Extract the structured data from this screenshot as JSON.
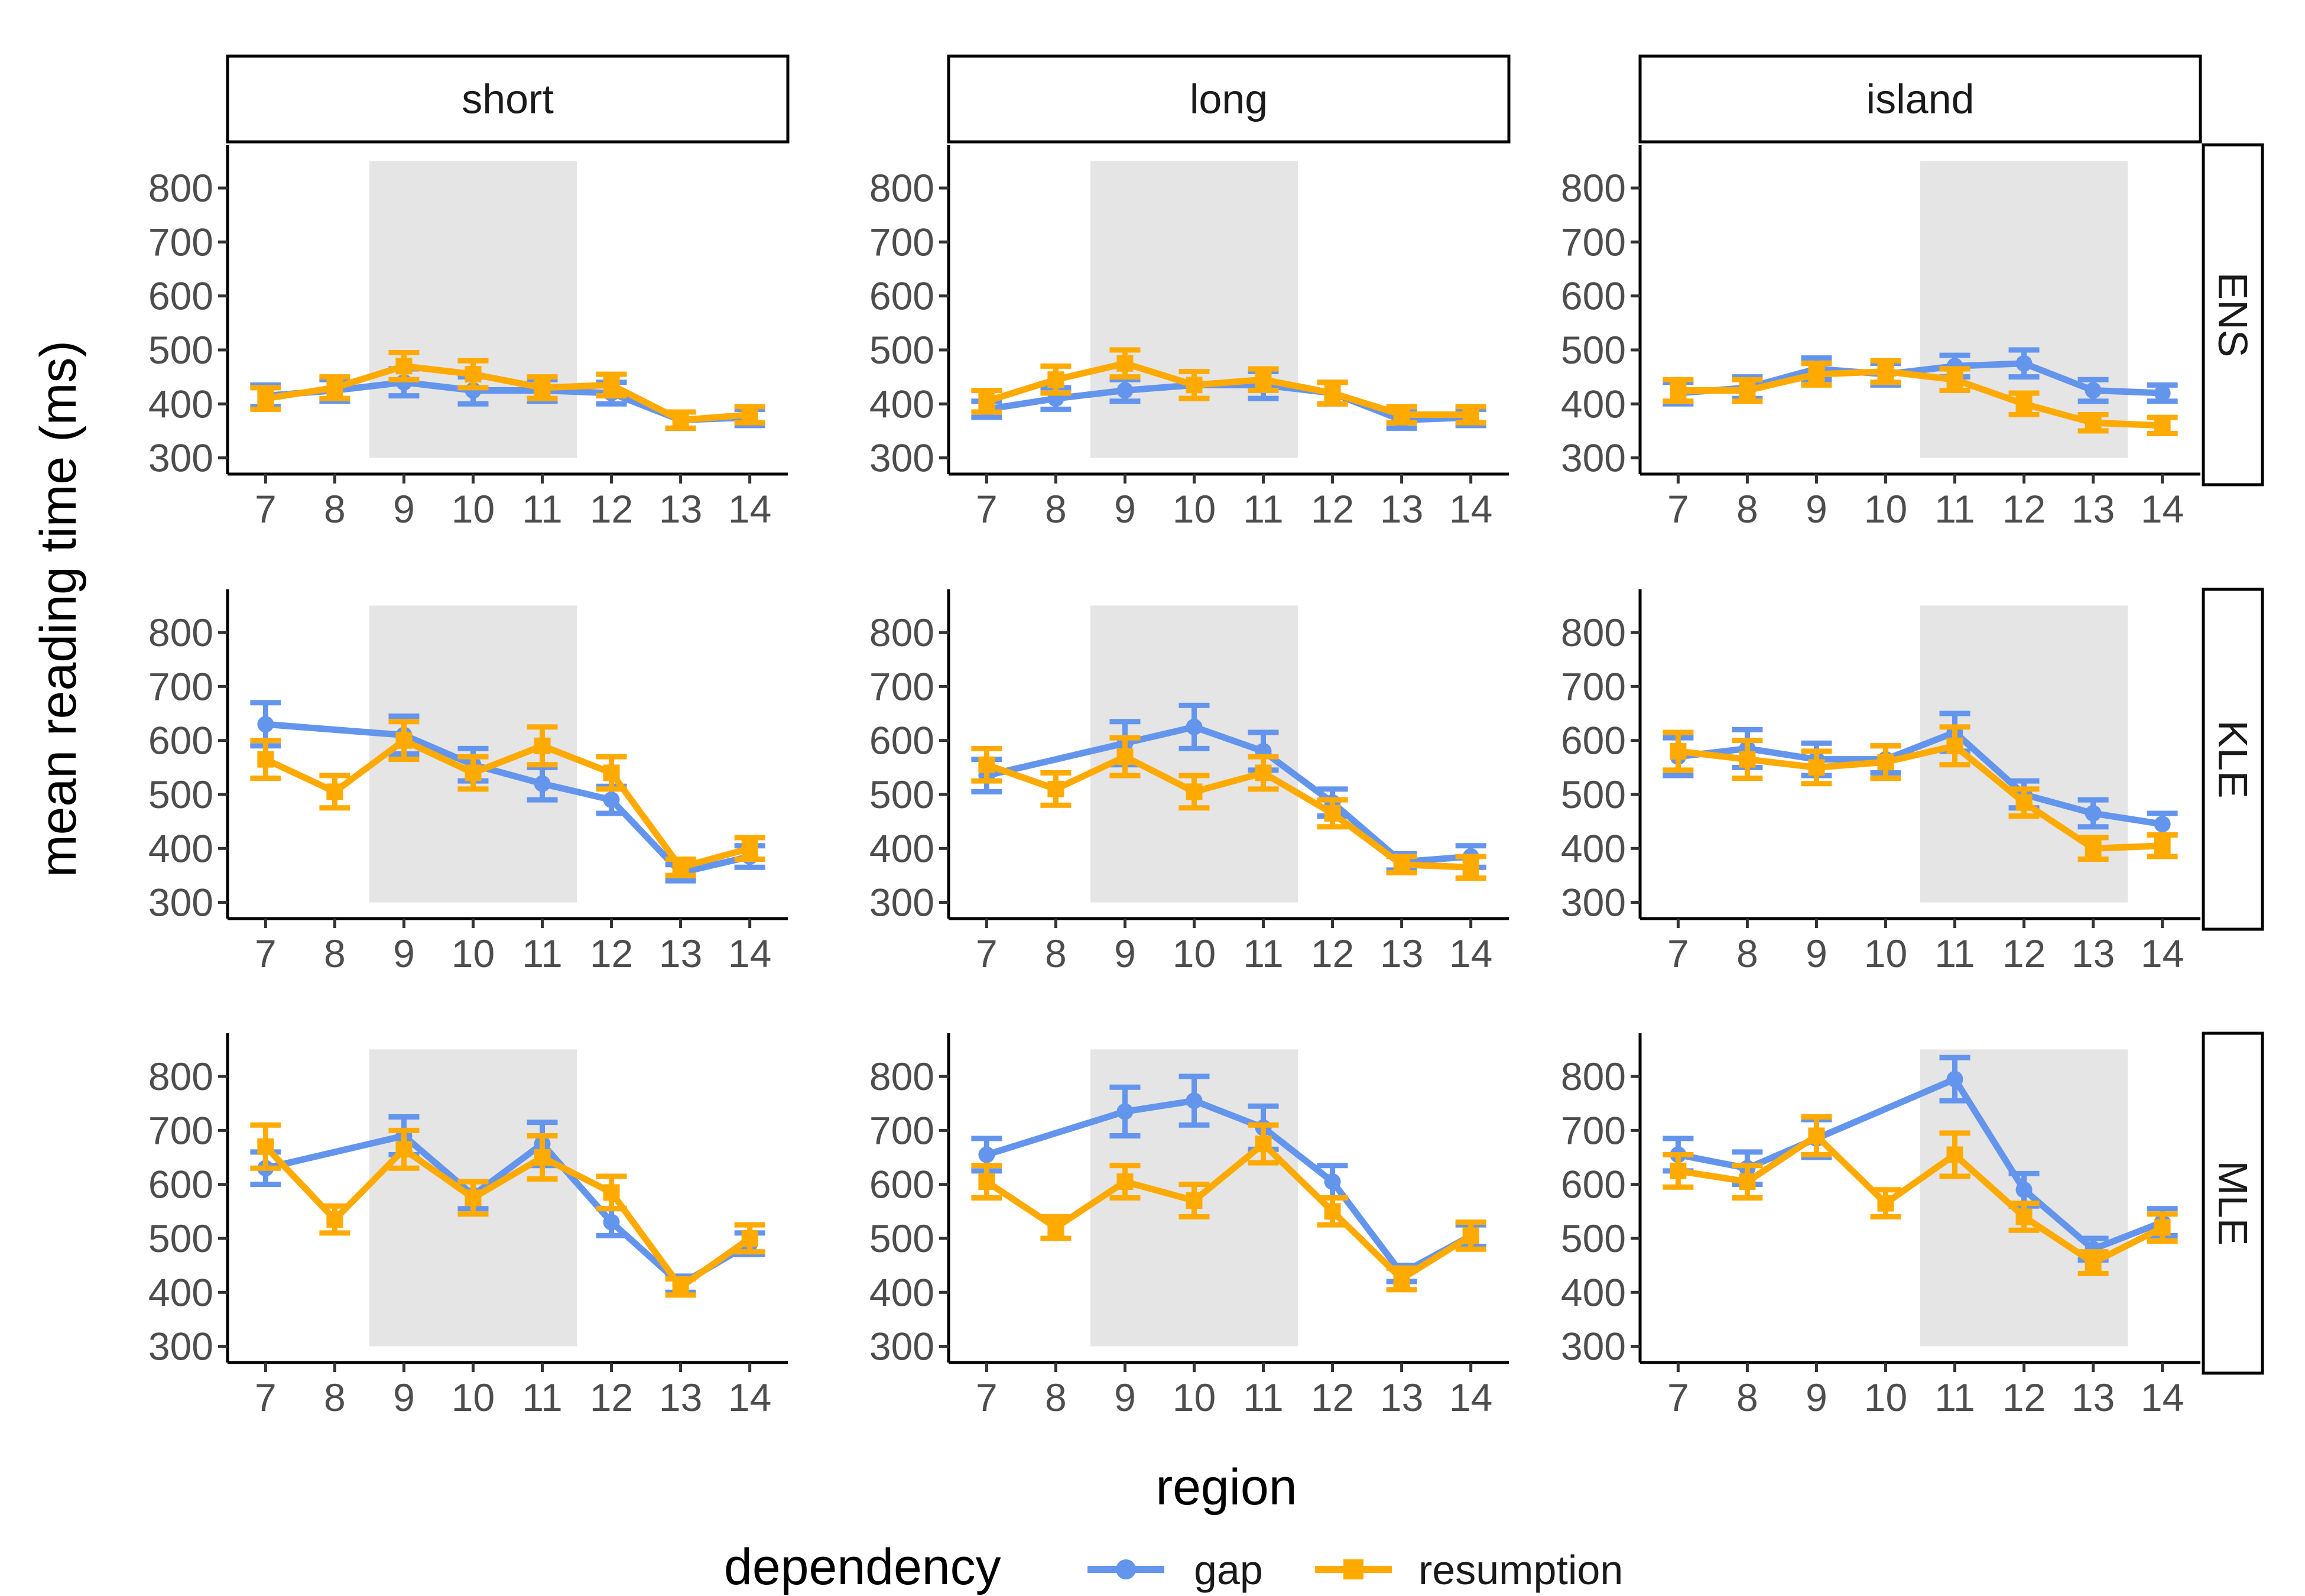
{
  "chart_data": {
    "type": "line",
    "facet_cols": [
      "short",
      "long",
      "island"
    ],
    "facet_rows": [
      "ENS",
      "KLE",
      "MLE"
    ],
    "x": [
      7,
      8,
      9,
      10,
      11,
      12,
      13,
      14
    ],
    "x_tick_labels": [
      "7",
      "8",
      "9",
      "10",
      "11",
      "12",
      "13",
      "14"
    ],
    "y_ticks": [
      300,
      400,
      500,
      600,
      700,
      800
    ],
    "ylim": [
      270,
      880
    ],
    "xlim": [
      6.45,
      14.55
    ],
    "xlabel": "region",
    "ylabel": "mean reading time (ms)",
    "grid": false,
    "legend": {
      "title": "dependency",
      "position": "bottom",
      "items": [
        {
          "name": "gap",
          "color": "#6495ED",
          "marker": "circle"
        },
        {
          "name": "resumption",
          "color": "#FFAA00",
          "marker": "square"
        }
      ]
    },
    "shaded_regions": {
      "short": [
        8.5,
        11.5
      ],
      "long": [
        8.5,
        11.5
      ],
      "island": [
        10.5,
        13.5
      ],
      "ymin": 300,
      "ymax": 850,
      "color": "#e5e5e5"
    },
    "panels": [
      {
        "col": "short",
        "row": "ENS",
        "series": [
          {
            "name": "gap",
            "values": [
              415,
              425,
              440,
              425,
              425,
              420,
              370,
              375
            ],
            "err": [
              20,
              20,
              25,
              25,
              20,
              20,
              15,
              15
            ]
          },
          {
            "name": "resumption",
            "values": [
              410,
              430,
              470,
              455,
              430,
              435,
              370,
              380
            ],
            "err": [
              20,
              20,
              25,
              25,
              20,
              20,
              15,
              15
            ]
          }
        ]
      },
      {
        "col": "long",
        "row": "ENS",
        "series": [
          {
            "name": "gap",
            "values": [
              390,
              410,
              425,
              435,
              435,
              420,
              370,
              375
            ],
            "err": [
              15,
              20,
              20,
              25,
              25,
              20,
              15,
              15
            ]
          },
          {
            "name": "resumption",
            "values": [
              405,
              445,
              475,
              435,
              445,
              420,
              380,
              380
            ],
            "err": [
              20,
              25,
              25,
              25,
              20,
              20,
              15,
              15
            ]
          }
        ]
      },
      {
        "col": "island",
        "row": "ENS",
        "series": [
          {
            "name": "gap",
            "values": [
              420,
              430,
              465,
              455,
              470,
              475,
              425,
              420
            ],
            "err": [
              20,
              20,
              20,
              20,
              20,
              25,
              20,
              15
            ]
          },
          {
            "name": "resumption",
            "values": [
              425,
              425,
              455,
              460,
              445,
              400,
              365,
              360
            ],
            "err": [
              20,
              20,
              20,
              20,
              20,
              20,
              15,
              15
            ]
          }
        ]
      },
      {
        "col": "short",
        "row": "KLE",
        "series": [
          {
            "name": "gap",
            "values": [
              630,
              null,
              610,
              555,
              520,
              490,
              355,
              385
            ],
            "err": [
              40,
              0,
              35,
              30,
              30,
              25,
              15,
              20
            ]
          },
          {
            "name": "resumption",
            "values": [
              565,
              505,
              600,
              540,
              590,
              540,
              365,
              400
            ],
            "err": [
              35,
              30,
              35,
              30,
              35,
              30,
              15,
              20
            ]
          }
        ]
      },
      {
        "col": "long",
        "row": "KLE",
        "series": [
          {
            "name": "gap",
            "values": [
              535,
              null,
              595,
              625,
              580,
              485,
              375,
              385
            ],
            "err": [
              30,
              0,
              40,
              40,
              35,
              25,
              15,
              20
            ]
          },
          {
            "name": "resumption",
            "values": [
              555,
              510,
              570,
              505,
              540,
              465,
              370,
              365
            ],
            "err": [
              30,
              30,
              35,
              30,
              30,
              25,
              15,
              20
            ]
          }
        ]
      },
      {
        "col": "island",
        "row": "KLE",
        "series": [
          {
            "name": "gap",
            "values": [
              570,
              585,
              565,
              565,
              615,
              500,
              465,
              445
            ],
            "err": [
              35,
              35,
              30,
              25,
              35,
              25,
              25,
              20
            ]
          },
          {
            "name": "resumption",
            "values": [
              580,
              565,
              550,
              560,
              590,
              485,
              400,
              405
            ],
            "err": [
              35,
              35,
              30,
              30,
              35,
              25,
              20,
              20
            ]
          }
        ]
      },
      {
        "col": "short",
        "row": "MLE",
        "series": [
          {
            "name": "gap",
            "values": [
              630,
              null,
              690,
              580,
              675,
              530,
              415,
              490
            ],
            "err": [
              30,
              0,
              35,
              25,
              40,
              25,
              15,
              20
            ]
          },
          {
            "name": "resumption",
            "values": [
              670,
              535,
              665,
              575,
              650,
              585,
              410,
              500
            ],
            "err": [
              40,
              25,
              35,
              30,
              40,
              30,
              15,
              25
            ]
          }
        ]
      },
      {
        "col": "long",
        "row": "MLE",
        "series": [
          {
            "name": "gap",
            "values": [
              655,
              null,
              735,
              755,
              705,
              605,
              435,
              505
            ],
            "err": [
              30,
              0,
              45,
              45,
              40,
              30,
              15,
              20
            ]
          },
          {
            "name": "resumption",
            "values": [
              605,
              520,
              605,
              570,
              675,
              550,
              425,
              505
            ],
            "err": [
              30,
              20,
              30,
              30,
              35,
              25,
              20,
              25
            ]
          }
        ]
      },
      {
        "col": "island",
        "row": "MLE",
        "series": [
          {
            "name": "gap",
            "values": [
              655,
              630,
              685,
              null,
              795,
              590,
              480,
              530
            ],
            "err": [
              30,
              30,
              35,
              0,
              40,
              30,
              20,
              25
            ]
          },
          {
            "name": "resumption",
            "values": [
              625,
              605,
              690,
              565,
              655,
              540,
              455,
              520
            ],
            "err": [
              30,
              30,
              35,
              25,
              40,
              25,
              20,
              25
            ]
          }
        ]
      }
    ]
  }
}
